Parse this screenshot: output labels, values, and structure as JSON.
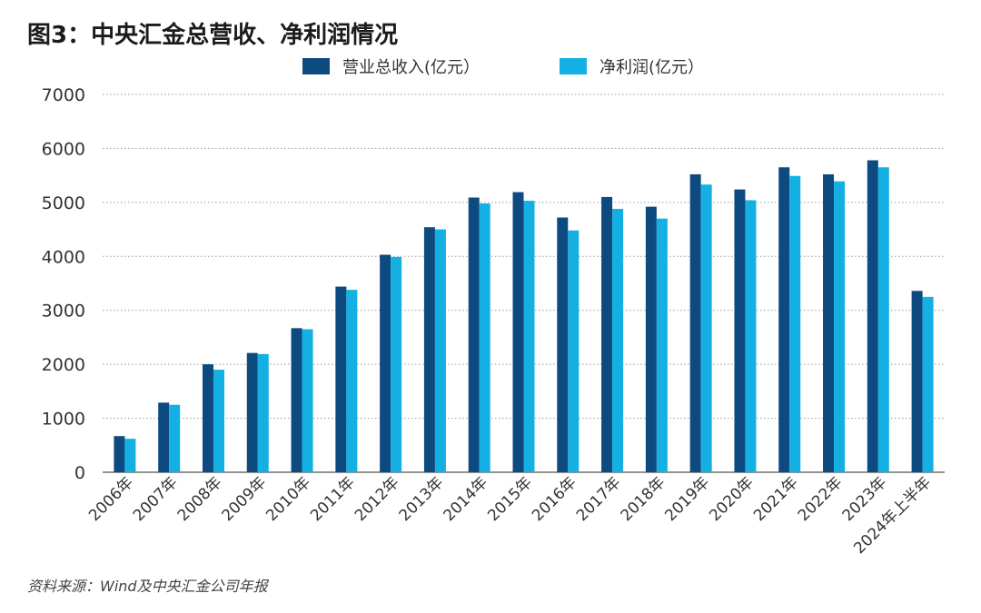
{
  "title": "图3：中央汇金总营收、净利润情况",
  "source": "资料来源：Wind及中央汇金公司年报",
  "colors": {
    "revenue": "#0d4a7f",
    "profit": "#15b0e3",
    "grid": "#9a9a9a",
    "axis": "#555555"
  },
  "chart_data": {
    "type": "bar",
    "categories": [
      "2006年",
      "2007年",
      "2008年",
      "2009年",
      "2010年",
      "2011年",
      "2012年",
      "2013年",
      "2014年",
      "2015年",
      "2016年",
      "2017年",
      "2018年",
      "2019年",
      "2020年",
      "2021年",
      "2022年",
      "2023年",
      "2024年上半年"
    ],
    "series": [
      {
        "name": "营业总收入(亿元）",
        "values": [
          670,
          1290,
          2000,
          2210,
          2670,
          3440,
          4030,
          4540,
          5090,
          5190,
          4720,
          5100,
          4920,
          5520,
          5240,
          5650,
          5520,
          5780,
          3360
        ]
      },
      {
        "name": "净利润(亿元）",
        "values": [
          620,
          1250,
          1900,
          2190,
          2650,
          3380,
          3990,
          4500,
          4980,
          5030,
          4480,
          4880,
          4700,
          5330,
          5040,
          5490,
          5390,
          5650,
          3250
        ]
      }
    ],
    "ylim": [
      0,
      7000
    ],
    "yticks": [
      0,
      1000,
      2000,
      3000,
      4000,
      5000,
      6000,
      7000
    ],
    "grid": "horizontal-dotted",
    "legend": "top-center"
  }
}
